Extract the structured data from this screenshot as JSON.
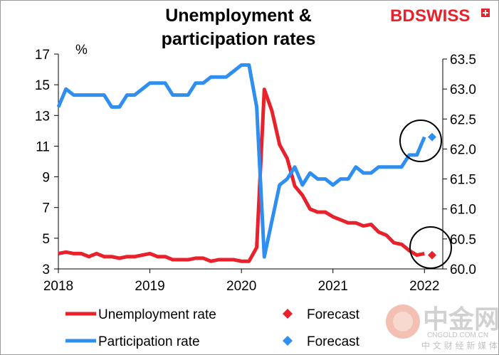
{
  "chart_data": {
    "type": "line",
    "title_line1": "Unemployment &",
    "title_line2": "participation rates",
    "ylabel_left": "%",
    "left_axis": {
      "ylim": [
        3,
        17
      ],
      "ticks": [
        "3",
        "5",
        "7",
        "9",
        "11",
        "13",
        "15",
        "17"
      ]
    },
    "right_axis": {
      "ylim": [
        60.0,
        63.5
      ],
      "ticks": [
        "60.0",
        "60.5",
        "61.0",
        "61.5",
        "62.0",
        "62.5",
        "63.0",
        "63.5"
      ]
    },
    "x_axis": {
      "range": [
        2018.0,
        2022.2
      ],
      "ticks": [
        "2018",
        "2019",
        "2020",
        "2021",
        "2022"
      ]
    },
    "grid": false,
    "legend_placement": "bottom",
    "series": [
      {
        "name": "Unemployment rate",
        "axis": "left",
        "color": "#e8212b",
        "x": [
          2018.0,
          2018.083,
          2018.167,
          2018.25,
          2018.333,
          2018.417,
          2018.5,
          2018.583,
          2018.667,
          2018.75,
          2018.833,
          2018.917,
          2019.0,
          2019.083,
          2019.167,
          2019.25,
          2019.333,
          2019.417,
          2019.5,
          2019.583,
          2019.667,
          2019.75,
          2019.833,
          2019.917,
          2020.0,
          2020.083,
          2020.167,
          2020.25,
          2020.333,
          2020.417,
          2020.5,
          2020.583,
          2020.667,
          2020.75,
          2020.833,
          2020.917,
          2021.0,
          2021.083,
          2021.167,
          2021.25,
          2021.333,
          2021.417,
          2021.5,
          2021.583,
          2021.667,
          2021.75,
          2021.833,
          2021.917,
          2022.0
        ],
        "values": [
          4.0,
          4.1,
          4.0,
          4.0,
          3.8,
          4.0,
          3.8,
          3.8,
          3.7,
          3.8,
          3.8,
          3.9,
          4.0,
          3.8,
          3.8,
          3.6,
          3.6,
          3.6,
          3.7,
          3.7,
          3.5,
          3.6,
          3.6,
          3.6,
          3.5,
          3.5,
          4.4,
          14.7,
          13.3,
          11.1,
          10.2,
          8.4,
          7.8,
          6.9,
          6.7,
          6.7,
          6.4,
          6.2,
          6.0,
          6.0,
          5.8,
          5.9,
          5.4,
          5.2,
          4.7,
          4.6,
          4.2,
          3.9,
          4.0
        ]
      },
      {
        "name": "Participation rate",
        "axis": "right",
        "color": "#2f8ff0",
        "x": [
          2018.0,
          2018.083,
          2018.167,
          2018.25,
          2018.333,
          2018.417,
          2018.5,
          2018.583,
          2018.667,
          2018.75,
          2018.833,
          2018.917,
          2019.0,
          2019.083,
          2019.167,
          2019.25,
          2019.333,
          2019.417,
          2019.5,
          2019.583,
          2019.667,
          2019.75,
          2019.833,
          2019.917,
          2020.0,
          2020.083,
          2020.167,
          2020.25,
          2020.333,
          2020.417,
          2020.5,
          2020.583,
          2020.667,
          2020.75,
          2020.833,
          2020.917,
          2021.0,
          2021.083,
          2021.167,
          2021.25,
          2021.333,
          2021.417,
          2021.5,
          2021.583,
          2021.667,
          2021.75,
          2021.833,
          2021.917,
          2022.0
        ],
        "values": [
          62.7,
          63.0,
          62.9,
          62.9,
          62.9,
          62.9,
          62.9,
          62.7,
          62.7,
          62.9,
          62.9,
          63.0,
          63.1,
          63.1,
          63.1,
          62.9,
          62.9,
          62.9,
          63.1,
          63.1,
          63.2,
          63.2,
          63.2,
          63.3,
          63.4,
          63.4,
          62.7,
          60.2,
          60.8,
          61.4,
          61.5,
          61.7,
          61.4,
          61.6,
          61.5,
          61.5,
          61.4,
          61.5,
          61.5,
          61.7,
          61.6,
          61.6,
          61.7,
          61.7,
          61.7,
          61.7,
          61.9,
          61.9,
          62.2
        ]
      },
      {
        "name": "Forecast",
        "axis": "left",
        "color": "#e8212b",
        "marker": "diamond",
        "x": [
          2022.083
        ],
        "values": [
          3.9
        ]
      },
      {
        "name": "Forecast",
        "axis": "right",
        "color": "#2f8ff0",
        "marker": "diamond",
        "x": [
          2022.083
        ],
        "values": [
          62.2
        ]
      }
    ]
  },
  "brand": {
    "logo_bd": "BD",
    "logo_swiss": "SWISS",
    "color_bd": "#e8212b",
    "color_swiss": "#e8212b"
  },
  "watermark": {
    "chinese_big": "中金网",
    "site": "CNGOLD.COM.CN",
    "chinese_small": "中 文 财 经 新 媒 体"
  },
  "colors": {
    "unemployment": "#e8212b",
    "participation": "#2f8ff0",
    "circle": "#000000"
  }
}
